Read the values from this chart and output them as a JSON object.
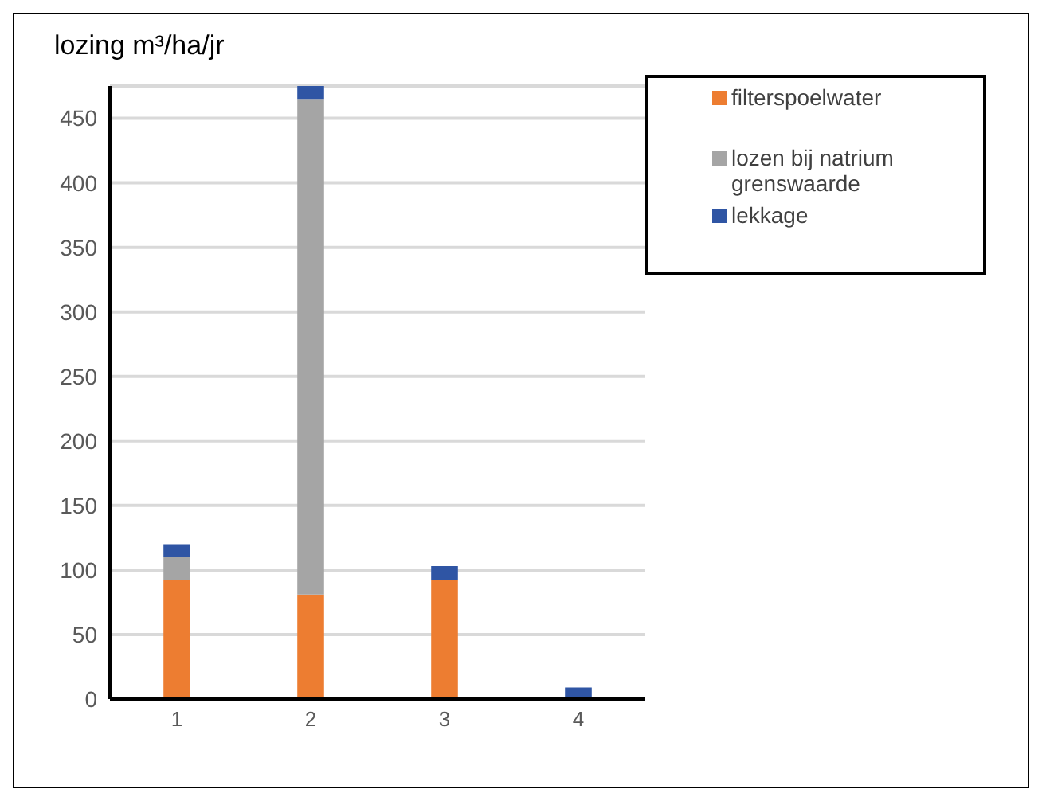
{
  "chart_data": {
    "type": "bar",
    "ylabel": "lozing m³/ha/jr",
    "categories": [
      "1",
      "2",
      "3",
      "4"
    ],
    "stacked": true,
    "series": [
      {
        "name": "filterspoelwater",
        "color": "#ed7d31",
        "values": [
          92,
          81,
          92,
          0
        ]
      },
      {
        "name": "lozen bij natrium grenswaarde",
        "color": "#a5a5a5",
        "values": [
          18,
          384,
          0,
          0
        ]
      },
      {
        "name": "lekkage",
        "color": "#2f55a4",
        "values": [
          10,
          10,
          11,
          9
        ]
      }
    ],
    "ylim": [
      0,
      475
    ],
    "yticks": [
      0,
      50,
      100,
      150,
      200,
      250,
      300,
      350,
      400,
      450
    ],
    "grid": "y",
    "legend": "top right"
  }
}
